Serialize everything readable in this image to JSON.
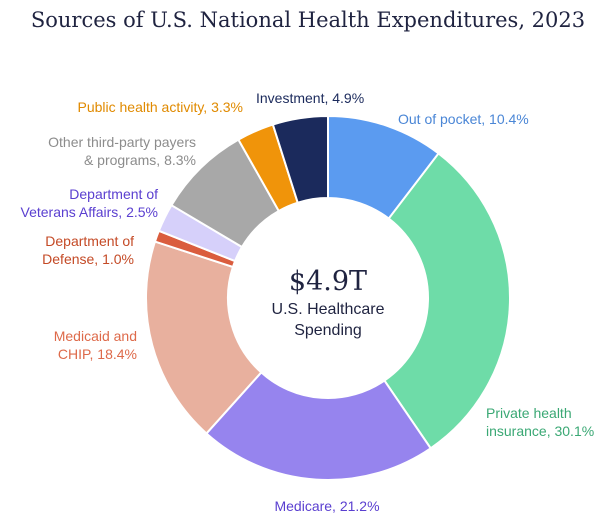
{
  "chart_data": {
    "type": "pie",
    "title": "Sources of U.S. National Health Expenditures, 2023",
    "center": {
      "value": "$4.9T",
      "line1": "U.S. Healthcare",
      "line2": "Spending"
    },
    "unit": "%",
    "slices": [
      {
        "key": "out-of-pocket",
        "lines": [
          "Out of pocket, 10.4%"
        ],
        "value": 10.4,
        "color": "#5b9bf0",
        "label_color": "#4a86d6"
      },
      {
        "key": "private-health-insurance",
        "lines": [
          "Private health",
          "insurance, 30.1%"
        ],
        "value": 30.1,
        "color": "#6edca8",
        "label_color": "#3aa874"
      },
      {
        "key": "medicare",
        "lines": [
          "Medicare, 21.2%"
        ],
        "value": 21.2,
        "color": "#9684ee",
        "label_color": "#5a3fd0"
      },
      {
        "key": "medicaid-and-chip",
        "lines": [
          "Medicaid and",
          "CHIP, 18.4%"
        ],
        "value": 18.4,
        "color": "#e8b09e",
        "label_color": "#de6a4a"
      },
      {
        "key": "department-of-defense",
        "lines": [
          "Department of",
          "Defense, 1.0%"
        ],
        "value": 1.0,
        "color": "#da5d3e",
        "label_color": "#c44a26"
      },
      {
        "key": "department-of-veterans-affairs",
        "lines": [
          "Department of",
          "Veterans Affairs, 2.5%"
        ],
        "value": 2.5,
        "color": "#d6d0fa",
        "label_color": "#5a3fd0"
      },
      {
        "key": "other-third-party-payers",
        "lines": [
          "Other third-party payers",
          "& programs, 8.3%"
        ],
        "value": 8.3,
        "color": "#a8a8a8",
        "label_color": "#8c8c8c"
      },
      {
        "key": "public-health-activity",
        "lines": [
          "Public health activity, 3.3%"
        ],
        "value": 3.3,
        "color": "#f0940a",
        "label_color": "#e08a00"
      },
      {
        "key": "investment",
        "lines": [
          "Investment, 4.9%"
        ],
        "value": 4.9,
        "color": "#1b2a5c",
        "label_color": "#1b2a5c"
      }
    ]
  }
}
